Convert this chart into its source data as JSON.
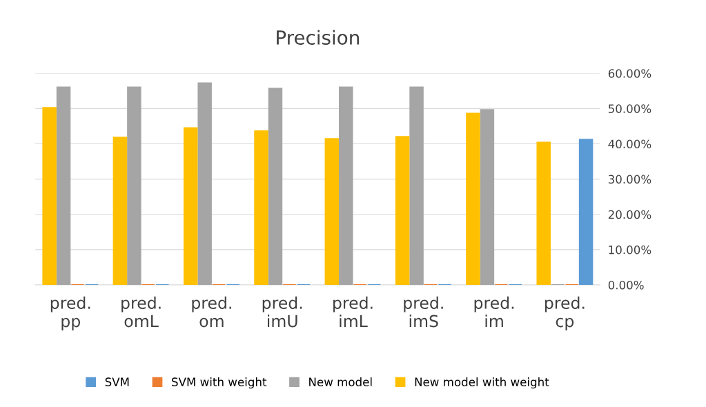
{
  "chart_data": {
    "type": "bar",
    "title": "Precision",
    "categories": [
      "pred.\npp",
      "pred.\nomL",
      "pred.\nom",
      "pred.\nimU",
      "pred.\nimL",
      "pred.\nimS",
      "pred.\nim",
      "pred.\ncp"
    ],
    "series": [
      {
        "name": "SVM",
        "color": "#5b9bd5",
        "values": [
          0,
          0,
          0,
          0,
          0,
          0,
          0,
          41.2
        ]
      },
      {
        "name": "SVM with weight",
        "color": "#ed7d31",
        "values": [
          0,
          0,
          0,
          0,
          0,
          0,
          0,
          0
        ]
      },
      {
        "name": "New model",
        "color": "#a5a5a5",
        "values": [
          56.0,
          56.0,
          57.2,
          55.7,
          56.0,
          56.0,
          49.6,
          0
        ]
      },
      {
        "name": "New model with weight",
        "color": "#ffc000",
        "values": [
          50.2,
          41.8,
          44.5,
          43.6,
          41.4,
          42.0,
          48.6,
          40.4
        ]
      }
    ],
    "ylim": [
      0,
      60
    ],
    "yticks": [
      {
        "value": 0,
        "label": "0.00%"
      },
      {
        "value": 10,
        "label": "10.00%"
      },
      {
        "value": 20,
        "label": "20.00%"
      },
      {
        "value": 30,
        "label": "30.00%"
      },
      {
        "value": 40,
        "label": "40.00%"
      },
      {
        "value": 50,
        "label": "50.00%"
      },
      {
        "value": 60,
        "label": "60.00%"
      }
    ],
    "grid": "y",
    "legend": "bottom"
  }
}
